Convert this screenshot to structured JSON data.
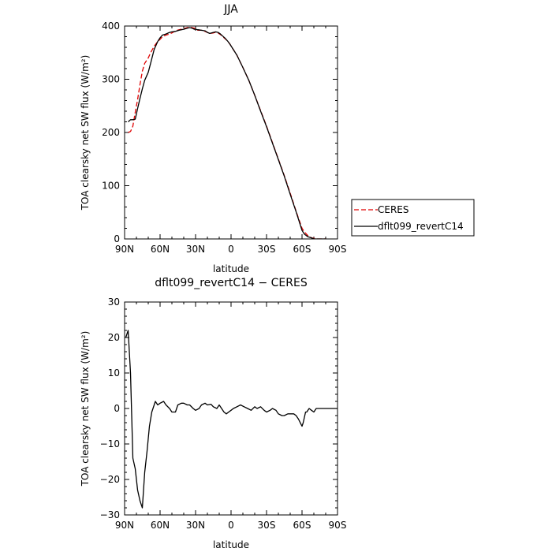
{
  "chart_data": [
    {
      "type": "line",
      "title": "JJA",
      "xlabel": "latitude",
      "ylabel": "TOA clearsky net SW flux (W/m²)",
      "xlim": [
        90,
        -90
      ],
      "ylim": [
        0,
        400
      ],
      "x_ticks": [
        90,
        60,
        30,
        0,
        -30,
        -60,
        -90
      ],
      "x_tick_labels": [
        "90N",
        "60N",
        "30N",
        "0",
        "30S",
        "60S",
        "90S"
      ],
      "y_ticks": [
        0,
        100,
        200,
        300,
        400
      ],
      "y_tick_labels": [
        "0",
        "100",
        "200",
        "300",
        "400"
      ],
      "legend": "right",
      "series": [
        {
          "name": "CERES",
          "color": "#e00000",
          "style": "dashed",
          "x": [
            87,
            85,
            83,
            81,
            79,
            77,
            75,
            73,
            70,
            68,
            65,
            62,
            60,
            58,
            55,
            52,
            50,
            47,
            44,
            40,
            37,
            35,
            33,
            31,
            30,
            28,
            25,
            22,
            20,
            18,
            15,
            13,
            11,
            9,
            7,
            5,
            3,
            1,
            -5,
            -10,
            -15,
            -20,
            -25,
            -30,
            -35,
            -40,
            -45,
            -50,
            -55,
            -60,
            -62,
            -65,
            -68,
            -70,
            -72,
            -75,
            -78,
            -80
          ],
          "values": [
            200,
            202,
            212,
            238,
            262,
            290,
            315,
            330,
            340,
            350,
            362,
            371,
            375,
            380,
            383,
            385,
            387,
            391,
            393,
            395,
            397,
            398,
            397,
            396,
            394,
            392,
            392,
            390,
            388,
            386,
            387,
            388,
            387,
            384,
            380,
            376,
            372,
            366,
            345,
            322,
            298,
            270,
            241,
            212,
            181,
            150,
            119,
            86,
            52,
            20,
            13,
            6,
            2,
            1,
            0,
            0,
            0,
            0
          ]
        },
        {
          "name": "dflt099_revertC14",
          "color": "#000000",
          "style": "solid",
          "x": [
            87,
            85,
            83,
            81,
            79,
            77,
            75,
            73,
            70,
            68,
            65,
            62,
            60,
            58,
            55,
            52,
            50,
            47,
            44,
            40,
            37,
            35,
            33,
            31,
            30,
            28,
            25,
            22,
            20,
            18,
            15,
            13,
            11,
            9,
            7,
            5,
            3,
            1,
            -5,
            -10,
            -15,
            -20,
            -25,
            -30,
            -35,
            -40,
            -45,
            -50,
            -55,
            -60,
            -62,
            -65,
            -68,
            -70,
            -72,
            -75,
            -78,
            -80
          ],
          "values": [
            220,
            224,
            224,
            225,
            245,
            264,
            282,
            298,
            313,
            330,
            356,
            371,
            378,
            383,
            385,
            388,
            389,
            390,
            392,
            394,
            396,
            397,
            396,
            394,
            394,
            393,
            392,
            391,
            388,
            386,
            388,
            389,
            388,
            385,
            381,
            377,
            372,
            366,
            345,
            322,
            298,
            270,
            240,
            211,
            180,
            149,
            118,
            84,
            51,
            16,
            9,
            4,
            2,
            0,
            0,
            0,
            0,
            0
          ]
        }
      ]
    },
    {
      "type": "line",
      "title": "dflt099_revertC14 − CERES",
      "xlabel": "latitude",
      "ylabel": "TOA clearsky net SW flux (W/m²)",
      "xlim": [
        90,
        -90
      ],
      "ylim": [
        -30,
        30
      ],
      "x_ticks": [
        90,
        60,
        30,
        0,
        -30,
        -60,
        -90
      ],
      "x_tick_labels": [
        "90N",
        "60N",
        "30N",
        "0",
        "30S",
        "60S",
        "90S"
      ],
      "y_ticks": [
        -30,
        -20,
        -10,
        0,
        10,
        20,
        30
      ],
      "y_tick_labels": [
        "−30",
        "−20",
        "−10",
        "0",
        "10",
        "20",
        "30"
      ],
      "series": [
        {
          "color": "#000000",
          "style": "solid",
          "x": [
            89,
            87,
            85,
            83,
            81,
            79,
            77,
            75,
            73,
            71,
            69,
            67,
            64,
            62,
            60,
            57,
            55,
            52,
            50,
            47,
            45,
            42,
            40,
            37,
            35,
            32,
            30,
            27,
            25,
            22,
            20,
            17,
            15,
            12,
            10,
            8,
            6,
            4,
            2,
            0,
            -2,
            -5,
            -8,
            -11,
            -14,
            -17,
            -20,
            -22,
            -25,
            -28,
            -30,
            -33,
            -35,
            -38,
            -40,
            -43,
            -45,
            -48,
            -50,
            -53,
            -55,
            -57,
            -60,
            -61,
            -63,
            -64,
            -66,
            -68,
            -70,
            -72,
            -74,
            -77,
            -80,
            -85,
            -90
          ],
          "values": [
            20,
            22,
            10,
            -14,
            -17,
            -23,
            -26,
            -28,
            -18,
            -12,
            -5,
            -1,
            2,
            1,
            1.5,
            2,
            1,
            0,
            -1,
            -1,
            1,
            1.5,
            1.5,
            1,
            1,
            0,
            -0.5,
            0,
            1,
            1.5,
            1,
            1.2,
            0.5,
            0,
            1,
            0,
            -1,
            -1.5,
            -1,
            -0.5,
            0,
            0.5,
            1,
            0.5,
            0,
            -0.5,
            0.5,
            0,
            0.5,
            -0.5,
            -1,
            -0.5,
            0,
            -0.5,
            -1.5,
            -2,
            -2,
            -1.5,
            -1.5,
            -1.5,
            -2,
            -3,
            -5,
            -4,
            -1,
            -1,
            0,
            -0.5,
            -1,
            0,
            0,
            0,
            0,
            0,
            0
          ]
        }
      ]
    }
  ]
}
